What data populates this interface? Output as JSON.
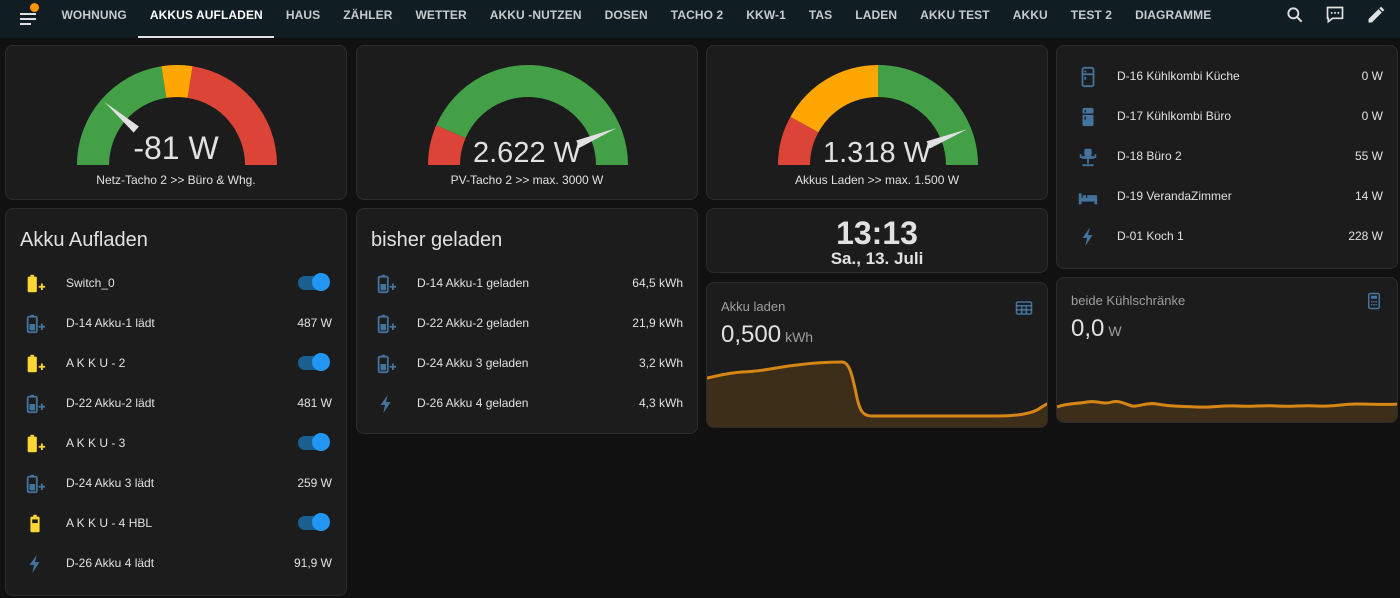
{
  "topbar": {
    "tabs": [
      "WOHNUNG",
      "AKKUS AUFLADEN",
      "HAUS",
      "ZÄHLER",
      "WETTER",
      "AKKU -NUTZEN",
      "DOSEN",
      "TACHO 2",
      "KKW-1",
      "TAS",
      "LADEN",
      "AKKU TEST",
      "AKKU",
      "TEST 2",
      "DIAGRAMME"
    ],
    "active_tab": "AKKUS AUFLADEN",
    "icons": [
      "menu-icon",
      "search-icon",
      "assist-icon",
      "edit-icon"
    ]
  },
  "gauges": [
    {
      "value": "-81 W",
      "label": "Netz-Tacho 2 >> Büro & Whg.",
      "level": -81,
      "range": [
        -400,
        1000
      ]
    },
    {
      "value": "2.622 W",
      "label": "PV-Tacho 2 >> max. 3000 W",
      "level": 2622,
      "range": [
        0,
        3000
      ]
    },
    {
      "value": "1.318 W",
      "label": "Akkus Laden >> max. 1.500 W",
      "level": 1318,
      "range": [
        0,
        1500
      ]
    }
  ],
  "akku_aufladen": {
    "title": "Akku Aufladen",
    "rows": [
      {
        "icon": "battery-charging-icon",
        "label": "Switch_0",
        "type": "toggle",
        "state": "on"
      },
      {
        "icon": "battery-plus-icon",
        "label": "D-14 Akku-1 lädt",
        "type": "value",
        "value": "487 W"
      },
      {
        "icon": "battery-charging-icon",
        "label": "A K K U - 2",
        "type": "toggle",
        "state": "on"
      },
      {
        "icon": "battery-plus-icon",
        "label": "D-22 Akku-2 lädt",
        "type": "value",
        "value": "481 W"
      },
      {
        "icon": "battery-charging-icon",
        "label": "A K K U - 3",
        "type": "toggle",
        "state": "on"
      },
      {
        "icon": "battery-plus-icon",
        "label": "D-24 Akku 3 lädt",
        "type": "value",
        "value": "259 W"
      },
      {
        "icon": "battery-icon",
        "label": "A K K U - 4 HBL",
        "type": "toggle",
        "state": "on"
      },
      {
        "icon": "flash-icon",
        "label": "D-26 Akku 4 lädt",
        "type": "value",
        "value": "91,9 W"
      }
    ]
  },
  "bisher_geladen": {
    "title": "bisher geladen",
    "rows": [
      {
        "icon": "battery-plus-icon",
        "label": "D-14 Akku-1 geladen",
        "value": "64,5 kWh"
      },
      {
        "icon": "battery-plus-icon",
        "label": "D-22 Akku-2 geladen",
        "value": "21,9 kWh"
      },
      {
        "icon": "battery-plus-icon",
        "label": "D-24 Akku 3 geladen",
        "value": "3,2 kWh"
      },
      {
        "icon": "flash-icon",
        "label": "D-26 Akku 4 geladen",
        "value": "4,3 kWh"
      }
    ]
  },
  "clock": {
    "time": "13:13",
    "date": "Sa., 13. Juli"
  },
  "akku_laden": {
    "name": "Akku laden",
    "value": "0,500",
    "unit": "kWh",
    "icon": "calendar-view-icon"
  },
  "kuehl": {
    "name": "beide Kühlschränke",
    "value": "0,0",
    "unit": "W",
    "icon": "calculator-icon"
  },
  "devices": [
    {
      "icon": "fridge-icon",
      "label": "D-16 Kühlkombi Küche",
      "value": "0 W"
    },
    {
      "icon": "fridge-filled-icon",
      "label": "D-17 Kühlkombi Büro",
      "value": "0 W"
    },
    {
      "icon": "desk-chair-icon",
      "label": "D-18 Büro 2",
      "value": "55 W"
    },
    {
      "icon": "bed-icon",
      "label": "D-19 VerandaZimmer",
      "value": "14 W"
    },
    {
      "icon": "flash-icon",
      "label": "D-01 Koch 1",
      "value": "228 W"
    }
  ],
  "colors": {
    "accent": "#2196f3",
    "orange": "#ff9800",
    "green": "#43a047",
    "red": "#db4437",
    "yellow": "#ffa600",
    "icon_blue": "#44739e",
    "icon_yellow": "#fdd835"
  }
}
